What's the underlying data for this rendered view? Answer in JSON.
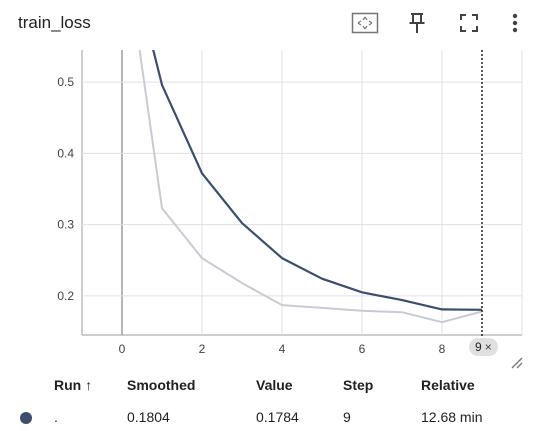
{
  "card": {
    "title": "train_loss",
    "toolbar_icons": [
      "fit-domain-icon",
      "pin-icon",
      "fullscreen-icon",
      "more-vert-icon"
    ]
  },
  "step_badge": {
    "value": "9",
    "close": "×"
  },
  "chart_data": {
    "type": "line",
    "title": "",
    "xlabel": "",
    "ylabel": "",
    "xlim": [
      -1,
      10
    ],
    "ylim": [
      0.145,
      0.545
    ],
    "x_ticks": [
      0,
      2,
      4,
      6,
      8
    ],
    "y_ticks": [
      0.2,
      0.3,
      0.4,
      0.5
    ],
    "x_tick_labels": [
      "0",
      "2",
      "4",
      "6",
      "8"
    ],
    "y_tick_labels": [
      "0.2",
      "0.3",
      "0.4",
      "0.5"
    ],
    "grid": true,
    "cursor_step": 9,
    "series": [
      {
        "color": "#c7cbd3",
        "x": [
          0,
          1,
          2,
          3,
          4,
          5,
          6,
          7,
          8,
          9
        ],
        "y": [
          0.72,
          0.323,
          0.253,
          0.218,
          0.187,
          0.183,
          0.179,
          0.177,
          0.163,
          0.178
        ]
      },
      {
        "color": "#3c4d6e",
        "x": [
          0,
          1,
          2,
          3,
          4,
          5,
          6,
          7,
          8,
          9
        ],
        "y": [
          0.72,
          0.496,
          0.372,
          0.302,
          0.253,
          0.224,
          0.205,
          0.194,
          0.181,
          0.1804
        ]
      }
    ]
  },
  "legend": {
    "headers": {
      "run": "Run",
      "sort": "↑",
      "smoothed": "Smoothed",
      "value": "Value",
      "step": "Step",
      "relative": "Relative"
    },
    "rows": [
      {
        "color": "#3c4d6e",
        "run": ".",
        "smoothed": "0.1804",
        "value": "0.1784",
        "step": "9",
        "relative": "12.68 min"
      }
    ]
  }
}
